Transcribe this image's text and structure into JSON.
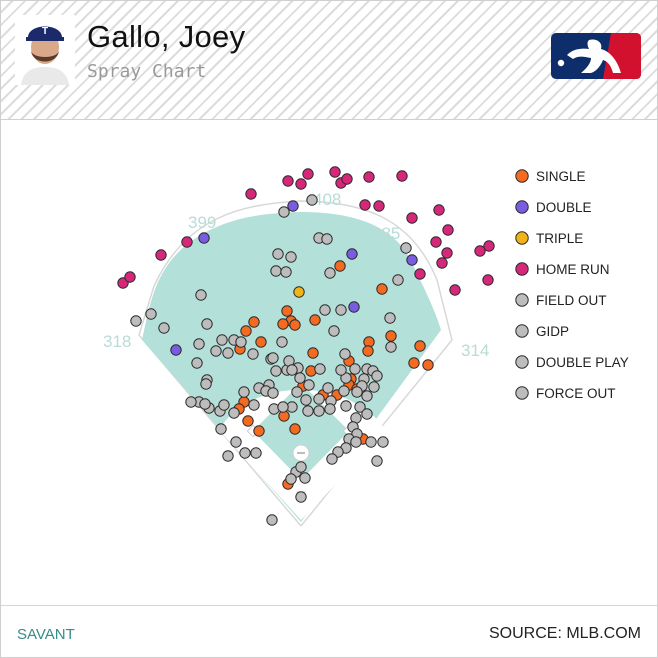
{
  "header": {
    "player_name": "Gallo, Joey",
    "subtitle": "Spray Chart",
    "team_icon": "rangers-cap-logo",
    "league_icon": "mlb-logo"
  },
  "footer": {
    "brand": "SAVANT",
    "source": "SOURCE: MLB.COM"
  },
  "colors": {
    "field": "#b4e0da",
    "single": "#f26b21",
    "double": "#7a5ce0",
    "triple": "#f2b318",
    "home_run": "#d6287a",
    "out": "#bdbdbd"
  },
  "chart_data": {
    "type": "scatter",
    "title": "Spray Chart",
    "fence_distances": [
      "318",
      "399",
      "408",
      "385",
      "314"
    ],
    "legend_position": "right",
    "legend": [
      {
        "key": "single",
        "label": "SINGLE",
        "color": "#f26b21"
      },
      {
        "key": "double",
        "label": "DOUBLE",
        "color": "#7a5ce0"
      },
      {
        "key": "triple",
        "label": "TRIPLE",
        "color": "#f2b318"
      },
      {
        "key": "home_run",
        "label": "HOME RUN",
        "color": "#d6287a"
      },
      {
        "key": "field_out",
        "label": "FIELD OUT",
        "color": "#bdbdbd"
      },
      {
        "key": "gidp",
        "label": "GIDP",
        "color": "#bdbdbd"
      },
      {
        "key": "double_play",
        "label": "DOUBLE PLAY",
        "color": "#bdbdbd"
      },
      {
        "key": "force_out",
        "label": "FORCE OUT",
        "color": "#bdbdbd"
      }
    ],
    "series": [
      {
        "name": "HOME RUN",
        "key": "home_run",
        "points": [
          [
            250,
            193
          ],
          [
            287,
            180
          ],
          [
            300,
            183
          ],
          [
            307,
            173
          ],
          [
            334,
            171
          ],
          [
            340,
            182
          ],
          [
            346,
            178
          ],
          [
            368,
            176
          ],
          [
            401,
            175
          ],
          [
            364,
            204
          ],
          [
            378,
            205
          ],
          [
            411,
            217
          ],
          [
            438,
            209
          ],
          [
            447,
            229
          ],
          [
            435,
            241
          ],
          [
            446,
            252
          ],
          [
            441,
            262
          ],
          [
            479,
            250
          ],
          [
            488,
            245
          ],
          [
            487,
            279
          ],
          [
            454,
            289
          ],
          [
            419,
            273
          ],
          [
            186,
            241
          ],
          [
            160,
            254
          ],
          [
            122,
            282
          ],
          [
            129,
            276
          ]
        ]
      },
      {
        "name": "DOUBLE",
        "key": "double",
        "points": [
          [
            292,
            205
          ],
          [
            203,
            237
          ],
          [
            351,
            253
          ],
          [
            411,
            259
          ],
          [
            353,
            306
          ],
          [
            175,
            349
          ]
        ]
      },
      {
        "name": "TRIPLE",
        "key": "triple",
        "points": [
          [
            298,
            291
          ]
        ]
      },
      {
        "name": "SINGLE",
        "key": "single",
        "points": [
          [
            339,
            265
          ],
          [
            381,
            288
          ],
          [
            286,
            310
          ],
          [
            290,
            320
          ],
          [
            282,
            323
          ],
          [
            294,
            324
          ],
          [
            314,
            319
          ],
          [
            253,
            321
          ],
          [
            245,
            330
          ],
          [
            260,
            341
          ],
          [
            239,
            348
          ],
          [
            312,
            352
          ],
          [
            368,
            341
          ],
          [
            367,
            350
          ],
          [
            390,
            335
          ],
          [
            419,
            345
          ],
          [
            413,
            362
          ],
          [
            427,
            364
          ],
          [
            348,
            360
          ],
          [
            350,
            378
          ],
          [
            310,
            370
          ],
          [
            302,
            385
          ],
          [
            322,
            394
          ],
          [
            336,
            394
          ],
          [
            348,
            384
          ],
          [
            356,
            388
          ],
          [
            243,
            401
          ],
          [
            238,
            408
          ],
          [
            283,
            415
          ],
          [
            247,
            420
          ],
          [
            258,
            430
          ],
          [
            294,
            428
          ],
          [
            362,
            438
          ],
          [
            287,
            483
          ]
        ]
      },
      {
        "name": "FIELD OUT",
        "key": "out",
        "points": [
          [
            311,
            199
          ],
          [
            283,
            211
          ],
          [
            318,
            237
          ],
          [
            326,
            238
          ],
          [
            277,
            253
          ],
          [
            290,
            256
          ],
          [
            275,
            270
          ],
          [
            285,
            271
          ],
          [
            329,
            272
          ],
          [
            405,
            247
          ],
          [
            397,
            279
          ],
          [
            200,
            294
          ],
          [
            150,
            313
          ],
          [
            163,
            327
          ],
          [
            135,
            320
          ],
          [
            206,
            323
          ],
          [
            233,
            339
          ],
          [
            240,
            341
          ],
          [
            221,
            339
          ],
          [
            198,
            343
          ],
          [
            215,
            350
          ],
          [
            227,
            352
          ],
          [
            252,
            353
          ],
          [
            324,
            309
          ],
          [
            340,
            309
          ],
          [
            389,
            317
          ],
          [
            390,
            346
          ],
          [
            333,
            330
          ],
          [
            281,
            341
          ],
          [
            270,
            358
          ],
          [
            272,
            357
          ],
          [
            196,
            362
          ],
          [
            206,
            379
          ],
          [
            286,
            369
          ],
          [
            275,
            370
          ],
          [
            297,
            367
          ],
          [
            288,
            360
          ],
          [
            291,
            369
          ],
          [
            319,
            368
          ],
          [
            268,
            384
          ],
          [
            258,
            387
          ],
          [
            265,
            390
          ],
          [
            243,
            391
          ],
          [
            299,
            377
          ],
          [
            308,
            384
          ],
          [
            296,
            391
          ],
          [
            291,
            406
          ],
          [
            307,
            410
          ],
          [
            318,
            410
          ],
          [
            344,
            353
          ],
          [
            354,
            368
          ],
          [
            366,
            368
          ],
          [
            372,
            370
          ],
          [
            376,
            375
          ],
          [
            363,
            378
          ],
          [
            345,
            377
          ],
          [
            340,
            369
          ],
          [
            327,
            387
          ],
          [
            343,
            390
          ],
          [
            361,
            385
          ],
          [
            373,
            386
          ],
          [
            366,
            395
          ],
          [
            356,
            391
          ],
          [
            330,
            400
          ],
          [
            318,
            398
          ],
          [
            305,
            399
          ],
          [
            329,
            408
          ],
          [
            345,
            405
          ],
          [
            359,
            406
          ],
          [
            355,
            417
          ],
          [
            366,
            413
          ],
          [
            352,
            426
          ],
          [
            356,
            433
          ],
          [
            348,
            438
          ],
          [
            345,
            447
          ],
          [
            337,
            451
          ],
          [
            331,
            458
          ],
          [
            370,
            441
          ],
          [
            355,
            441
          ],
          [
            382,
            441
          ],
          [
            376,
            460
          ],
          [
            198,
            401
          ],
          [
            208,
            407
          ],
          [
            219,
            410
          ],
          [
            233,
            412
          ],
          [
            220,
            428
          ],
          [
            235,
            441
          ],
          [
            227,
            455
          ],
          [
            244,
            452
          ],
          [
            255,
            452
          ],
          [
            190,
            401
          ],
          [
            204,
            403
          ],
          [
            253,
            404
          ],
          [
            272,
            392
          ],
          [
            273,
            408
          ],
          [
            282,
            406
          ],
          [
            295,
            471
          ],
          [
            300,
            466
          ],
          [
            304,
            477
          ],
          [
            290,
            478
          ],
          [
            300,
            496
          ],
          [
            271,
            519
          ],
          [
            223,
            404
          ],
          [
            205,
            383
          ]
        ]
      }
    ]
  }
}
